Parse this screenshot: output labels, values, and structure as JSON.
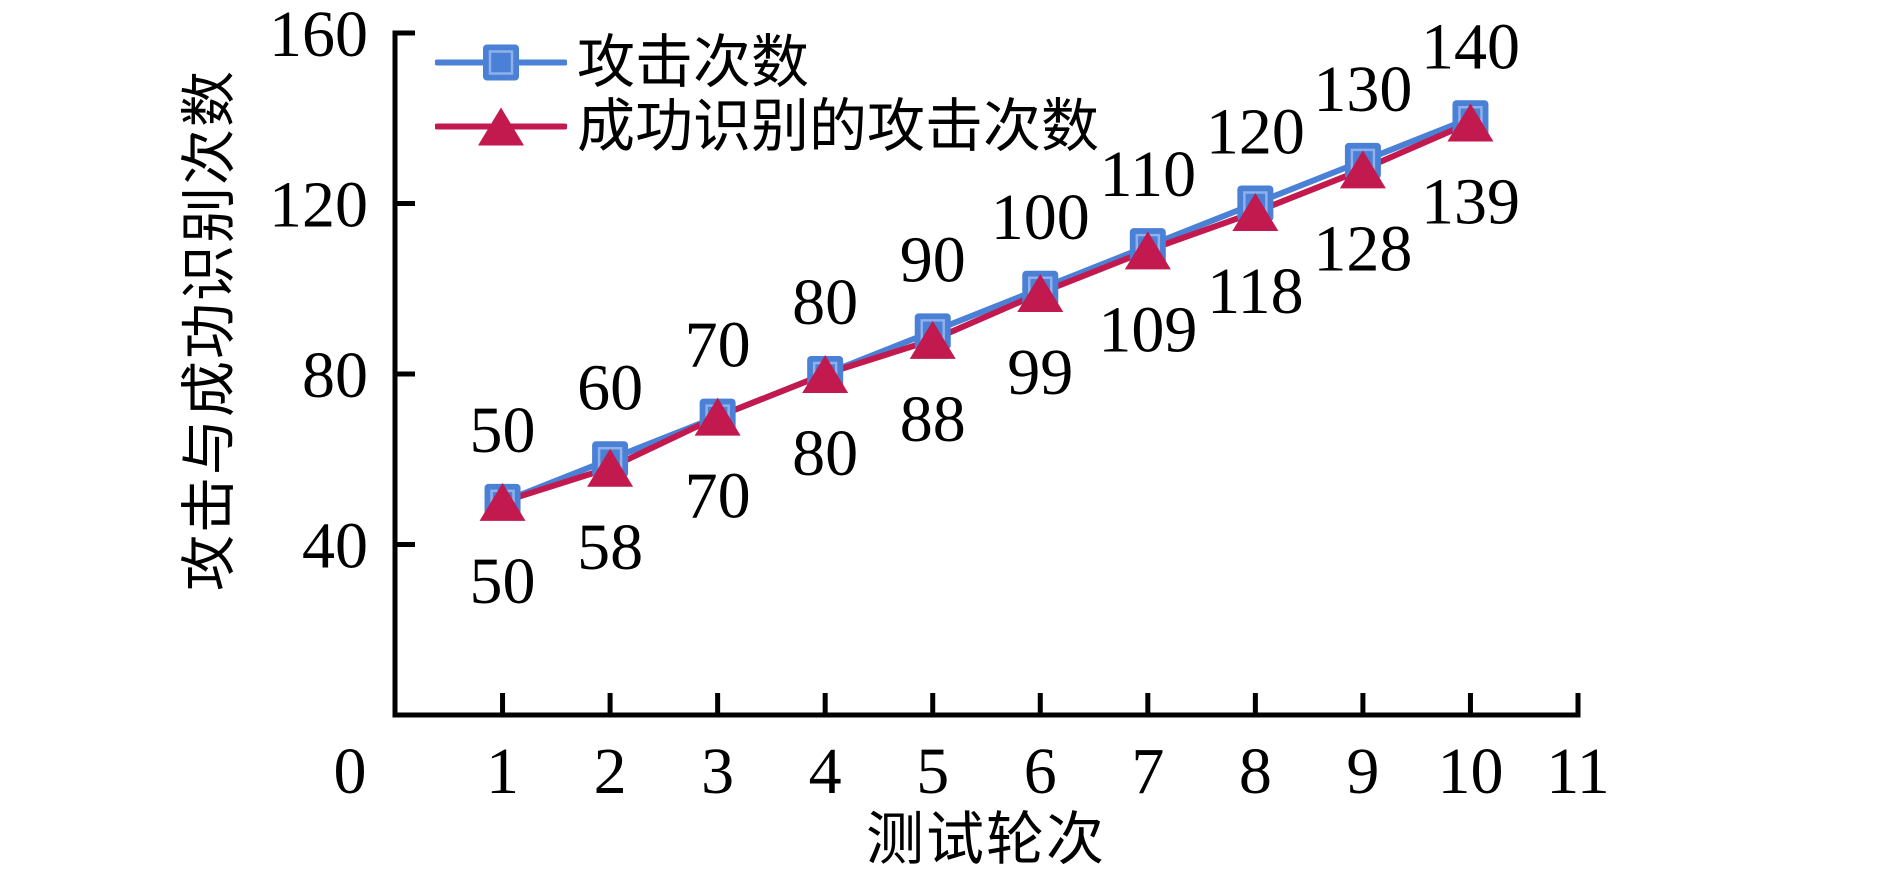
{
  "chart_data": {
    "type": "line",
    "title": "",
    "xlabel": "测试轮次",
    "ylabel": "攻击与成功识别次数",
    "x": [
      1,
      2,
      3,
      4,
      5,
      6,
      7,
      8,
      9,
      10
    ],
    "series": [
      {
        "name": "攻击次数",
        "marker": "square",
        "color": "#4a80d5",
        "marker_inner_stroke": "#8fb0ea",
        "values": [
          50,
          60,
          70,
          80,
          90,
          100,
          110,
          120,
          130,
          140
        ],
        "label_position": "above"
      },
      {
        "name": "成功识别的攻击次数",
        "marker": "triangle-up",
        "color": "#c2194e",
        "values": [
          50,
          58,
          70,
          80,
          88,
          99,
          109,
          118,
          128,
          139
        ],
        "label_position": "below"
      }
    ],
    "xlim": [
      0,
      11
    ],
    "ylim": [
      0,
      160
    ],
    "x_tick_values": [
      0,
      1,
      2,
      3,
      4,
      5,
      6,
      7,
      8,
      9,
      10,
      11
    ],
    "x_tick_labels": [
      "0",
      "1",
      "2",
      "3",
      "4",
      "5",
      "6",
      "7",
      "8",
      "9",
      "10",
      "11"
    ],
    "y_tick_values": [
      40,
      80,
      120,
      160
    ],
    "y_tick_labels": [
      "40",
      "80",
      "120",
      "160"
    ],
    "grid": false,
    "legend_position": "top-left",
    "axis_color": "#000000",
    "text_color": "#000000"
  }
}
